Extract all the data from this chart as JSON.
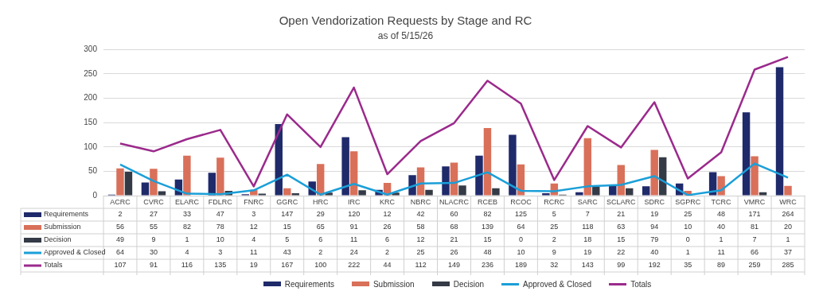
{
  "chart_data": {
    "type": "bar",
    "title": "Open Vendorization Requests by Stage and RC",
    "subtitle": "as of 5/15/26",
    "categories": [
      "ACRC",
      "CVRC",
      "ELARC",
      "FDLRC",
      "FNRC",
      "GGRC",
      "HRC",
      "IRC",
      "KRC",
      "NBRC",
      "NLACRC",
      "RCEB",
      "RCOC",
      "RCRC",
      "SARC",
      "SCLARC",
      "SDRC",
      "SGPRC",
      "TCRC",
      "VMRC",
      "WRC"
    ],
    "series": [
      {
        "name": "Requirements",
        "color": "#1f2a6b",
        "values": [
          2,
          27,
          33,
          47,
          3,
          147,
          29,
          120,
          12,
          42,
          60,
          82,
          125,
          5,
          7,
          21,
          19,
          25,
          48,
          171,
          264
        ]
      },
      {
        "name": "Submission",
        "color": "#d9705a",
        "values": [
          56,
          55,
          82,
          78,
          12,
          15,
          65,
          91,
          26,
          58,
          68,
          139,
          64,
          25,
          118,
          63,
          94,
          10,
          40,
          81,
          20
        ]
      },
      {
        "name": "Decision",
        "color": "#343a46",
        "values": [
          49,
          9,
          1,
          10,
          4,
          5,
          6,
          11,
          6,
          12,
          21,
          15,
          0,
          2,
          18,
          15,
          79,
          0,
          1,
          7,
          1
        ]
      },
      {
        "name": "Approved & Closed",
        "type": "line",
        "color": "#1a9fd8",
        "values": [
          64,
          30,
          4,
          3,
          11,
          43,
          2,
          24,
          2,
          25,
          26,
          48,
          10,
          9,
          19,
          22,
          40,
          1,
          11,
          66,
          37
        ]
      },
      {
        "name": "Totals",
        "type": "line",
        "color": "#9b2a8c",
        "values": [
          107,
          91,
          116,
          135,
          19,
          167,
          100,
          222,
          44,
          112,
          149,
          236,
          189,
          32,
          143,
          99,
          192,
          35,
          89,
          259,
          285
        ]
      }
    ],
    "ylim": [
      0,
      300
    ],
    "yticks": [
      0,
      50,
      100,
      150,
      200,
      250,
      300
    ],
    "grid": "y",
    "legend": "bottom",
    "marker": "none",
    "line_style": "solid",
    "data_labels": true
  }
}
